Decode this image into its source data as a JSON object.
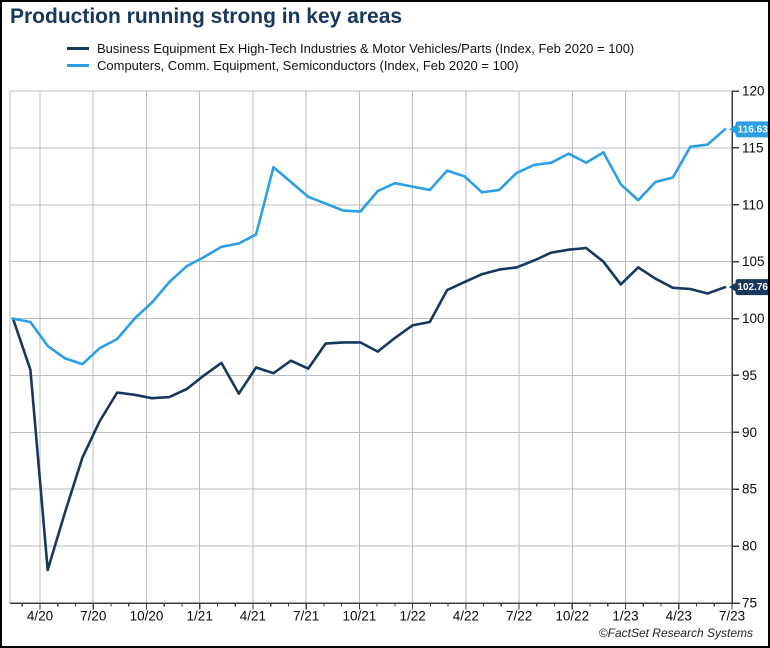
{
  "title": "Production running strong in key areas",
  "legend": [
    {
      "label": "Business Equipment Ex High-Tech Industries & Motor Vehicles/Parts (Index, Feb 2020 = 100)",
      "color": "#17375d"
    },
    {
      "label": "Computers, Comm. Equipment, Semiconductors (Index, Feb 2020 = 100)",
      "color": "#2b9fe6"
    }
  ],
  "footer": "©FactSet Research Systems",
  "chart_data": {
    "type": "line",
    "frequency": "monthly",
    "x_start": "2/2020",
    "x_end": "7/2023",
    "x_tick_labels": [
      "4/20",
      "7/20",
      "10/20",
      "1/21",
      "4/21",
      "7/21",
      "10/21",
      "1/22",
      "4/22",
      "7/22",
      "10/22",
      "1/23",
      "4/23",
      "7/23"
    ],
    "y_ticks": [
      75,
      80,
      85,
      90,
      95,
      100,
      105,
      110,
      115,
      120
    ],
    "ylim": [
      75,
      120
    ],
    "grid": true,
    "legend_position": "top-left",
    "colors": {
      "grid": "#b7bdc3",
      "axis": "#3d3d3d",
      "tick_text": "#0a0a0a"
    },
    "series": [
      {
        "name": "Business Equipment Ex High-Tech Industries & Motor Vehicles/Parts (Index, Feb 2020 = 100)",
        "color": "#17375d",
        "end_label": "102.76",
        "values": [
          100.0,
          95.5,
          77.9,
          83.0,
          87.8,
          91.0,
          93.5,
          93.3,
          93.0,
          93.1,
          93.8,
          95.0,
          96.1,
          93.4,
          95.7,
          95.2,
          96.3,
          95.6,
          97.8,
          97.9,
          97.9,
          97.1,
          98.3,
          99.4,
          99.7,
          102.5,
          103.2,
          103.9,
          104.3,
          104.5,
          105.1,
          105.8,
          106.05,
          106.2,
          105.0,
          103.0,
          104.5,
          103.5,
          102.7,
          102.6,
          102.2,
          102.76
        ]
      },
      {
        "name": "Computers, Comm. Equipment, Semiconductors (Index, Feb 2020 = 100)",
        "color": "#2b9fe6",
        "end_label": "116.63",
        "values": [
          100.0,
          99.7,
          97.6,
          96.5,
          96.0,
          97.4,
          98.2,
          100.0,
          101.4,
          103.2,
          104.6,
          105.4,
          106.3,
          106.6,
          107.4,
          113.3,
          112.0,
          110.7,
          110.1,
          109.5,
          109.4,
          111.2,
          111.9,
          111.6,
          111.3,
          113.0,
          112.5,
          111.1,
          111.3,
          112.8,
          113.5,
          113.7,
          114.5,
          113.7,
          114.6,
          111.8,
          110.4,
          112.0,
          112.4,
          115.1,
          115.3,
          116.63
        ]
      }
    ]
  }
}
